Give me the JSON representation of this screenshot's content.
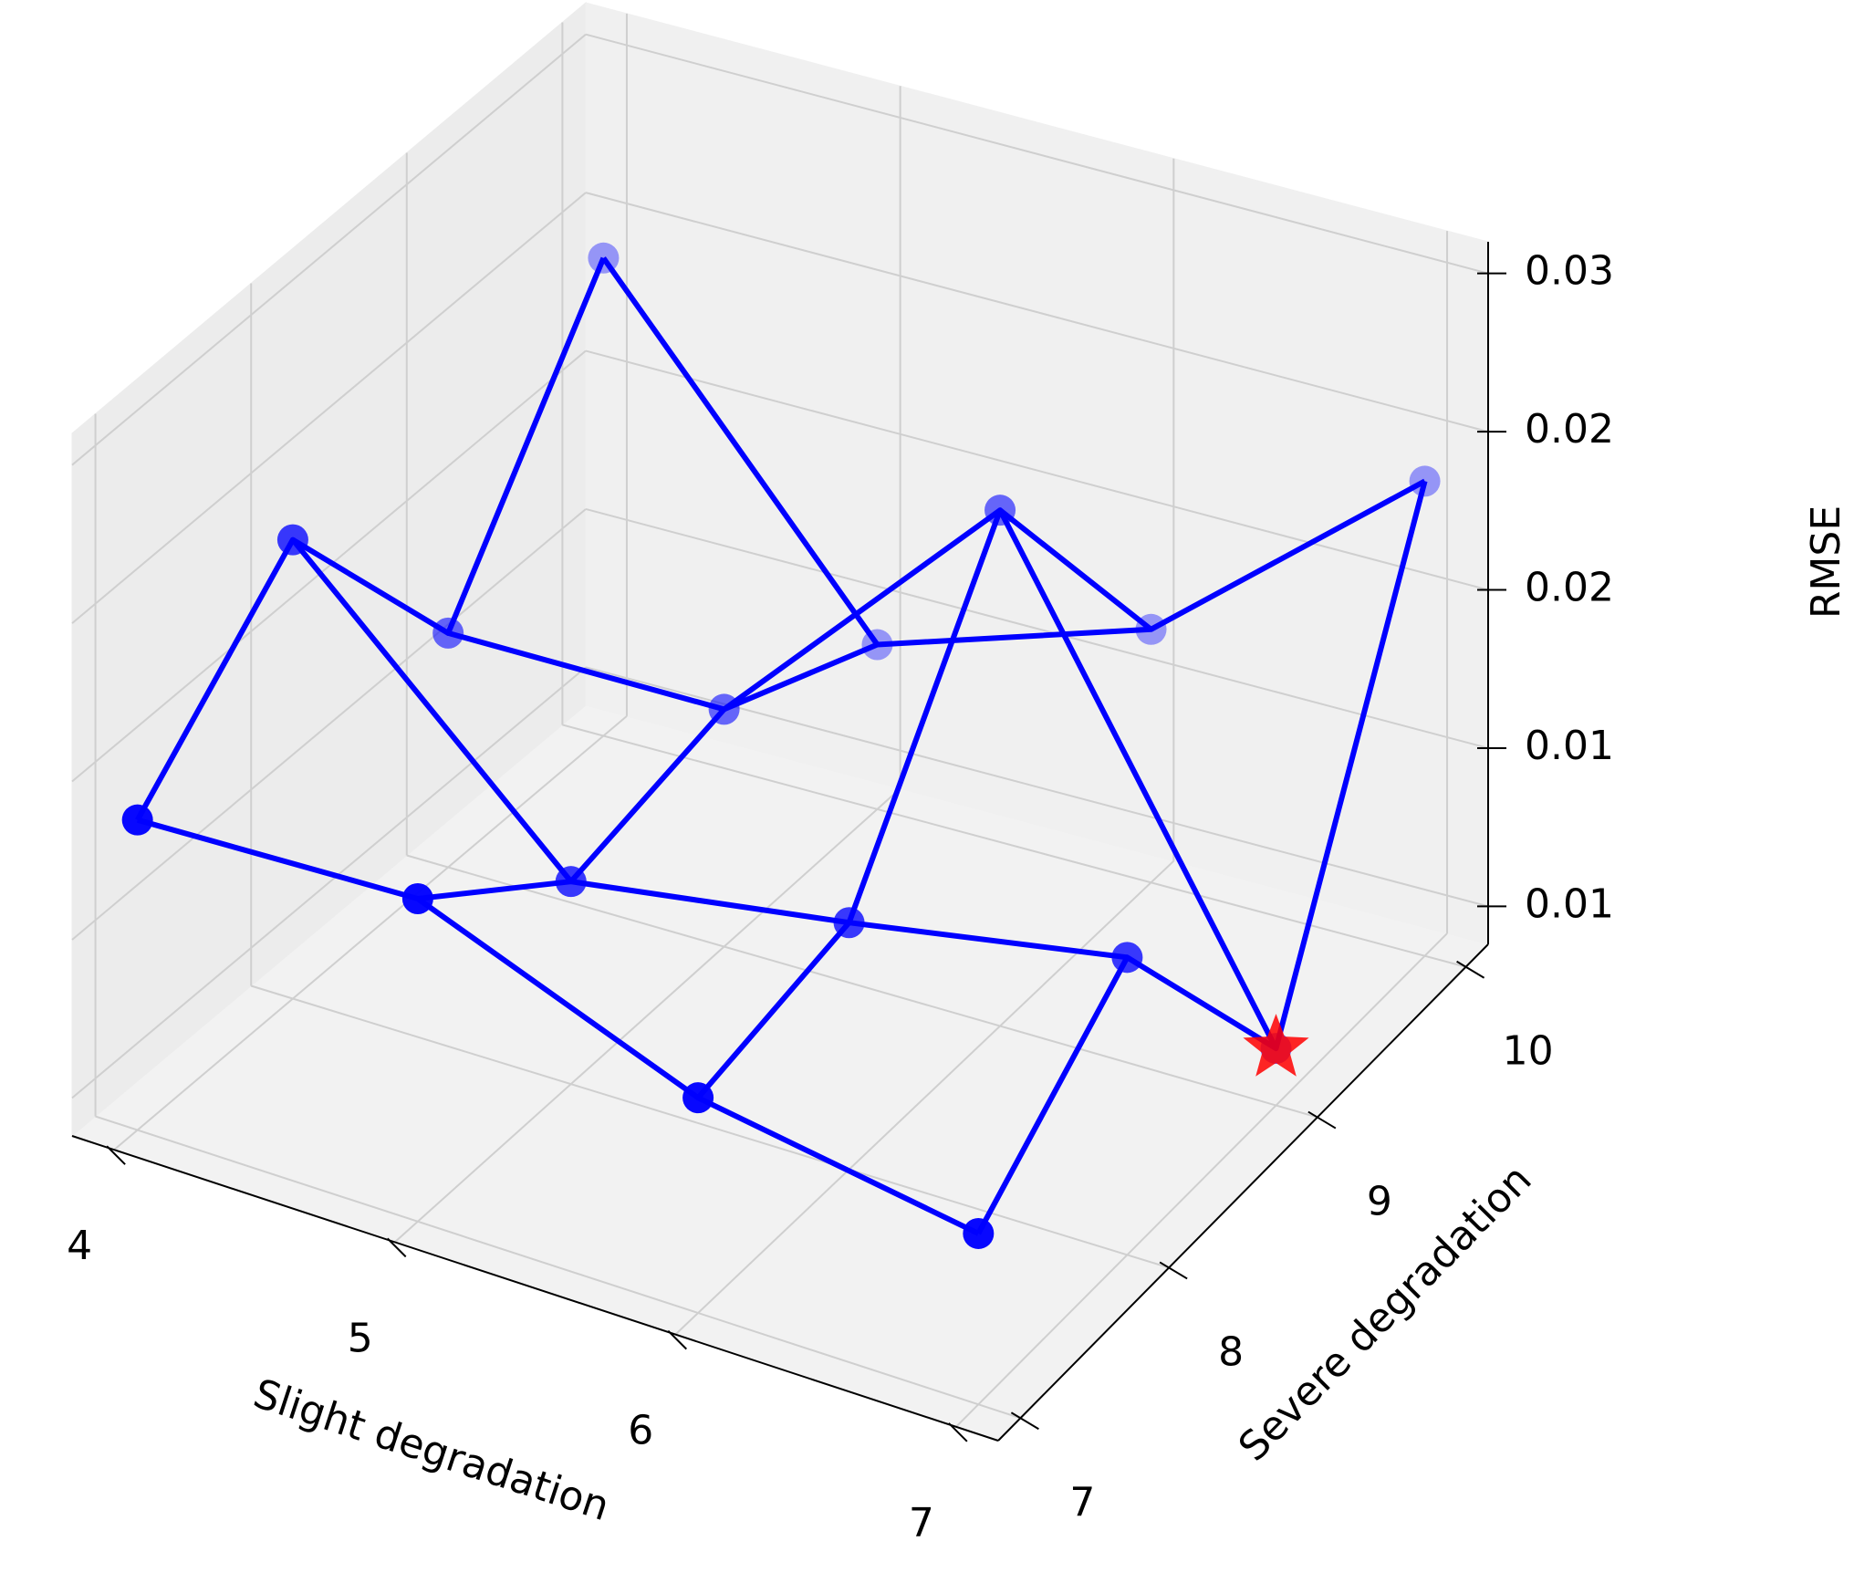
{
  "chart_data": {
    "type": "wireframe3d",
    "x_label": "Slight degradation",
    "y_label": "Severe degradation",
    "z_label": "RMSE",
    "x": [
      4,
      5,
      6,
      7
    ],
    "y": [
      7,
      8,
      9,
      10
    ],
    "z": [
      [
        0.0186,
        0.019,
        0.0156,
        0.0142
      ],
      [
        0.0233,
        0.0152,
        0.0166,
        0.0182
      ],
      [
        0.0162,
        0.0163,
        0.0251,
        0.0106
      ],
      [
        0.0239,
        0.014,
        0.0168,
        0.0238
      ]
    ],
    "color": "blue",
    "highlight_min": true,
    "highlight_color": "red",
    "xlim": [
      3.85,
      7.15
    ],
    "ylim": [
      6.85,
      10.15
    ],
    "zlim": [
      0.0088,
      0.031
    ],
    "xticks": [
      4,
      5,
      6,
      7
    ],
    "yticks": [
      7,
      8,
      9,
      10
    ],
    "zticks": [
      0.01,
      {
        "value": 0.015,
        "label": "0.01"
      },
      0.02,
      {
        "value": 0.025,
        "label": "0.02"
      },
      0.03
    ],
    "grid": true
  }
}
